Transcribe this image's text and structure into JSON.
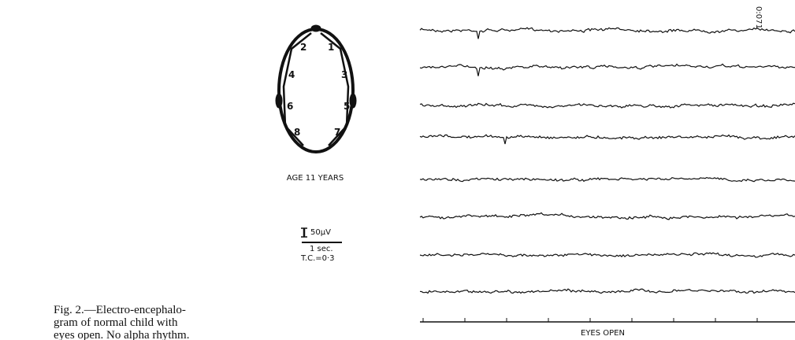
{
  "figure": {
    "caption_lines": [
      "Fig. 2.—Electro-encephalo-",
      "gram of normal child with",
      "eyes open. No alpha rhythm."
    ],
    "electrodes": [
      "1",
      "2",
      "3",
      "4",
      "5",
      "6",
      "7",
      "8"
    ],
    "age_label": "AGE 11 YEARS",
    "scale": {
      "amplitude": "50µV",
      "time": "1 sec.",
      "time_constant": "T.C.=0·3"
    },
    "trace_marker": "0:071",
    "trace_label": "EYES OPEN"
  }
}
